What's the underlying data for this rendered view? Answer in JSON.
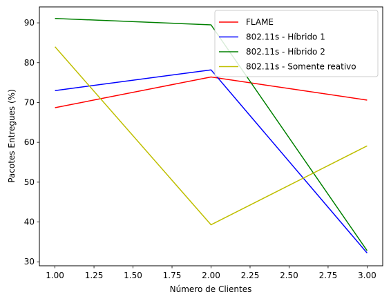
{
  "chart_data": {
    "type": "line",
    "xlabel": "Número de Clientes",
    "ylabel": "Pacotes Entregues (%)",
    "xlim": [
      0.9,
      3.1
    ],
    "ylim": [
      29,
      94
    ],
    "x": [
      1.0,
      2.0,
      3.0
    ],
    "xticks": [
      1.0,
      1.25,
      1.5,
      1.75,
      2.0,
      2.25,
      2.5,
      2.75,
      3.0
    ],
    "xtick_labels": [
      "1.00",
      "1.25",
      "1.50",
      "1.75",
      "2.00",
      "2.25",
      "2.50",
      "2.75",
      "3.00"
    ],
    "yticks": [
      30,
      40,
      50,
      60,
      70,
      80,
      90
    ],
    "ytick_labels": [
      "30",
      "40",
      "50",
      "60",
      "70",
      "80",
      "90"
    ],
    "legend_position": "top-right",
    "grid": false,
    "series": [
      {
        "name": "FLAME",
        "color": "#ff0000",
        "values": [
          68.7,
          76.4,
          70.6
        ]
      },
      {
        "name": "802.11s - Híbrido 1",
        "color": "#0000ff",
        "values": [
          73.0,
          78.2,
          32.2
        ]
      },
      {
        "name": "802.11s - Híbrido 2",
        "color": "#008000",
        "values": [
          91.1,
          89.5,
          32.8
        ]
      },
      {
        "name": "802.11s - Somente reativo",
        "color": "#bfbf00",
        "values": [
          84.0,
          39.3,
          59.1
        ]
      }
    ]
  }
}
